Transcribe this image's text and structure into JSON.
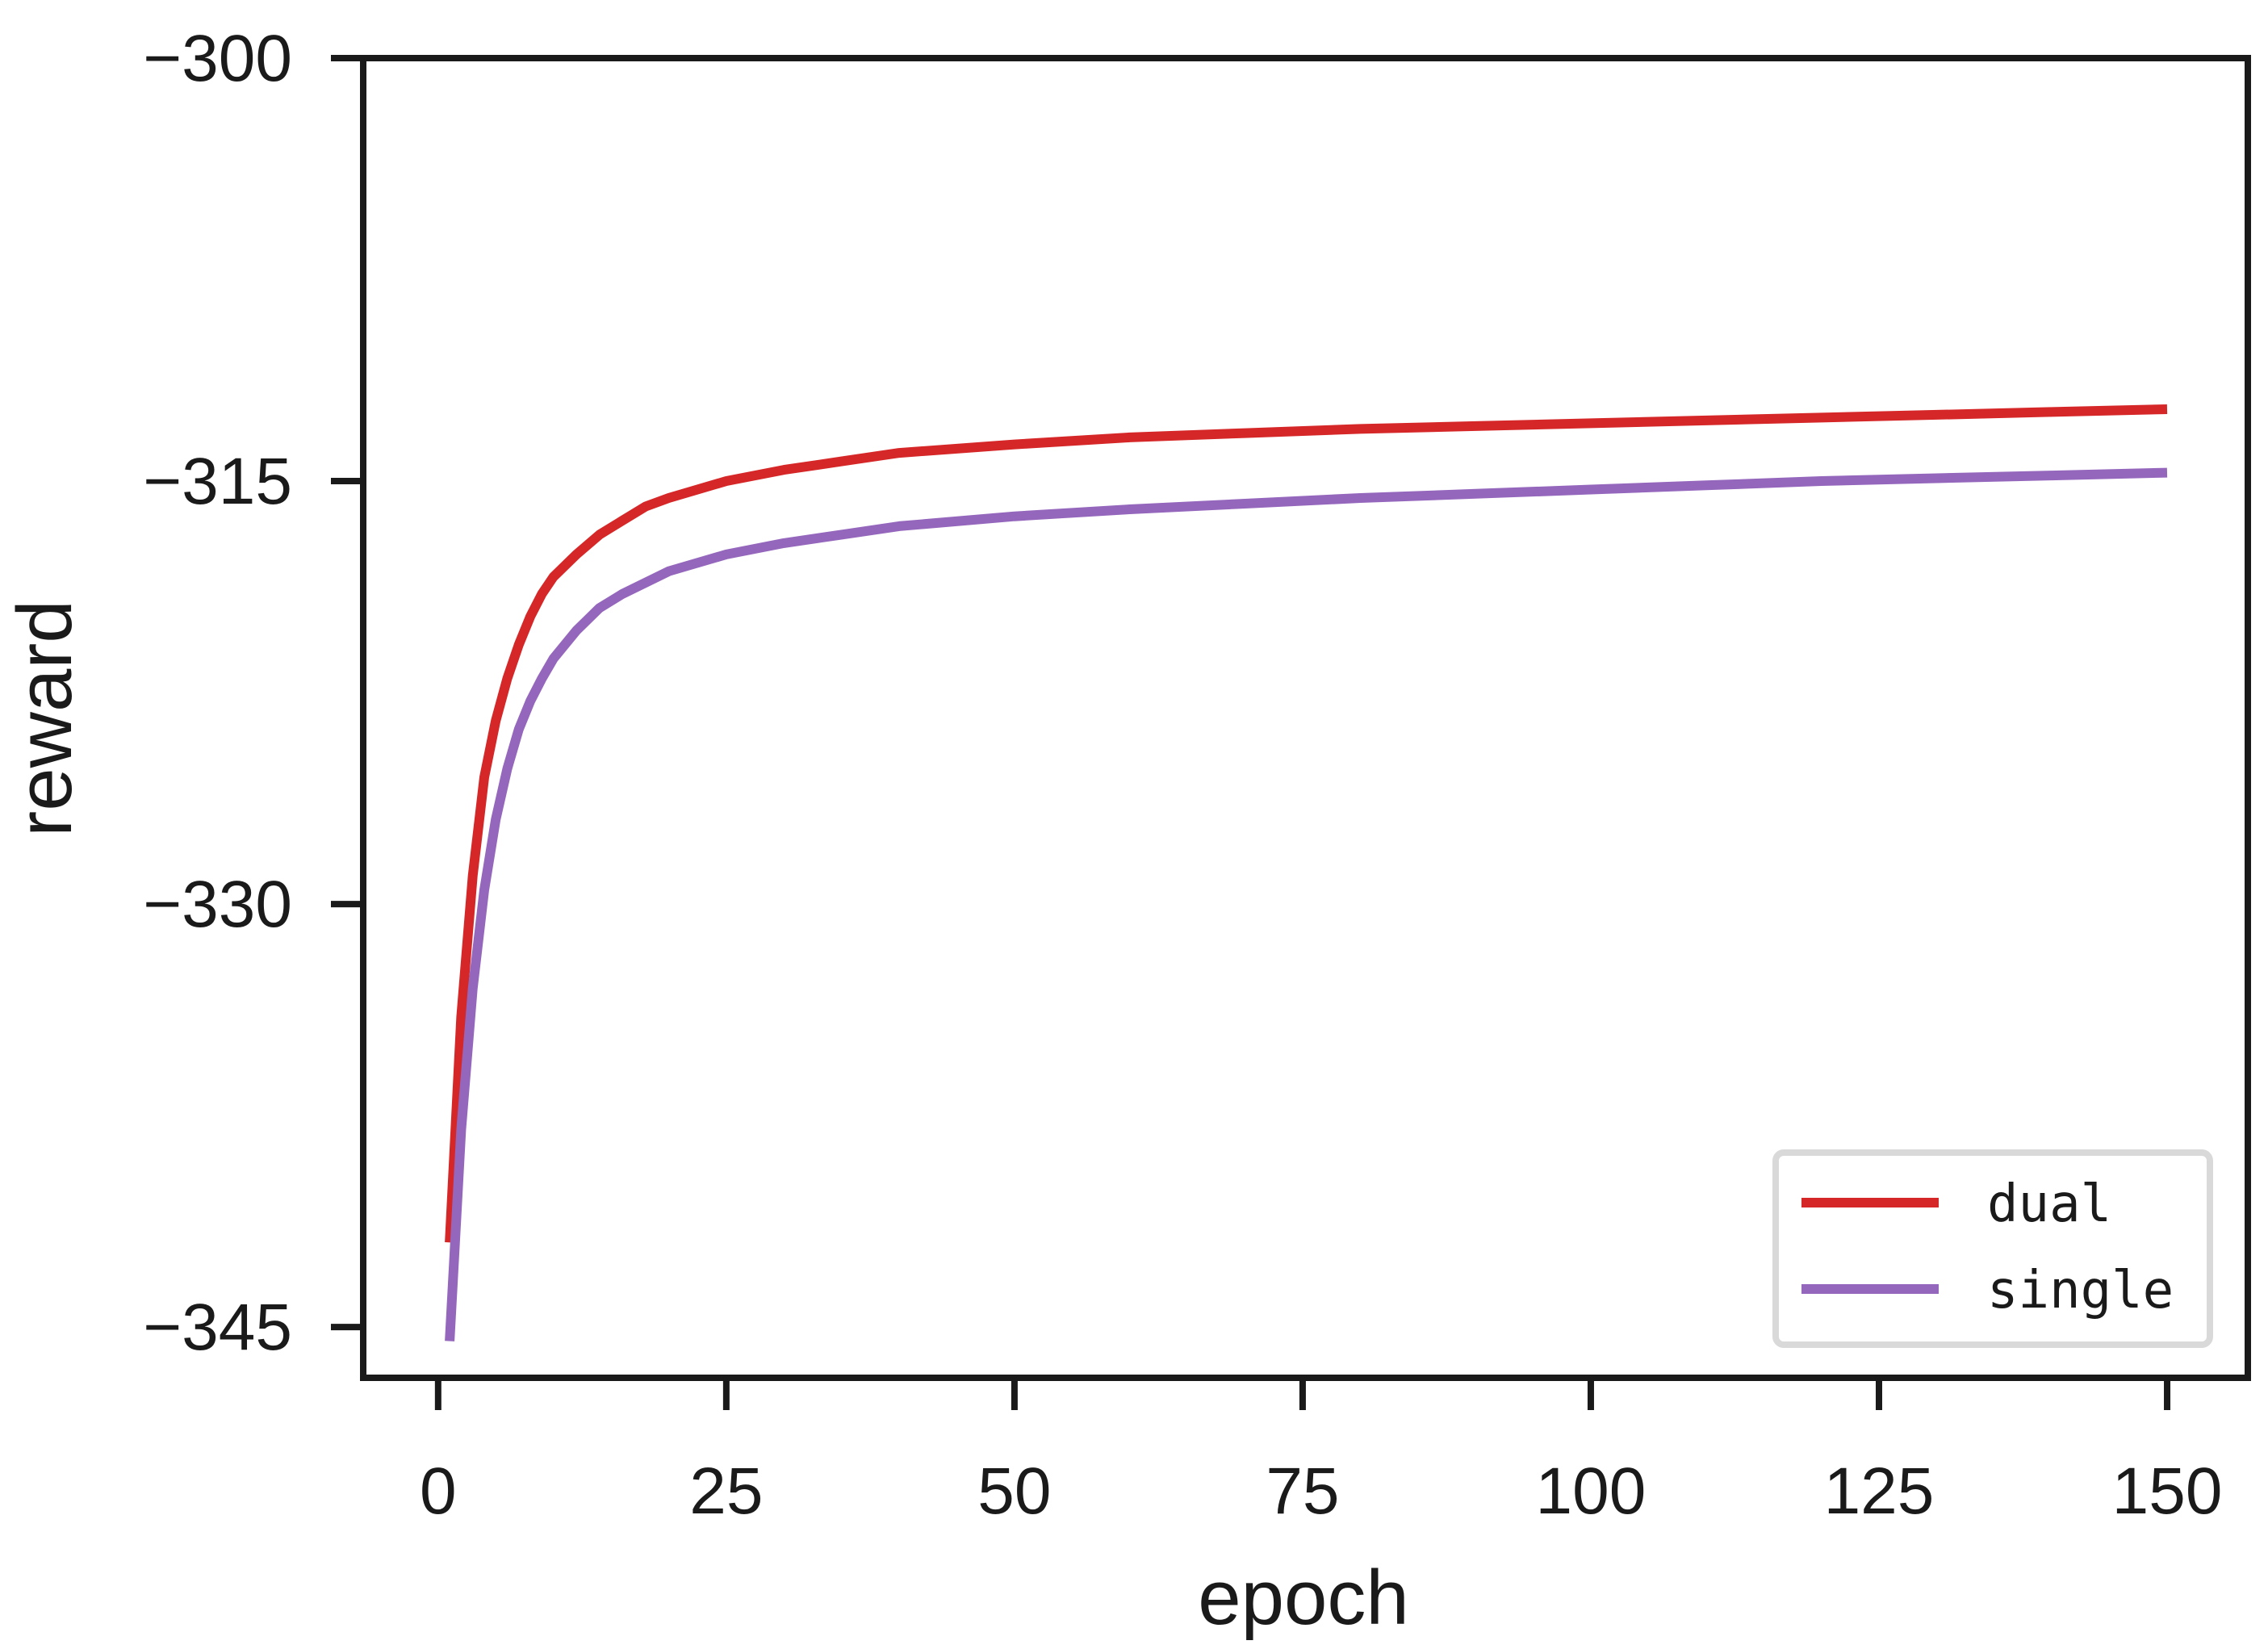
{
  "chart_data": {
    "type": "line",
    "title": "",
    "xlabel": "epoch",
    "ylabel": "reward",
    "xlim": [
      -6.5,
      157
    ],
    "ylim": [
      -346.8,
      -300
    ],
    "xticks": [
      0,
      25,
      50,
      75,
      100,
      125,
      150
    ],
    "yticks": [
      -300,
      -315,
      -330,
      -345
    ],
    "xtick_labels": [
      "0",
      "25",
      "50",
      "75",
      "100",
      "125",
      "150"
    ],
    "ytick_labels": [
      "−300",
      "−315",
      "−330",
      "−345"
    ],
    "grid": false,
    "legend": {
      "position": "lower-right"
    },
    "series": [
      {
        "name": "dual",
        "color": "#d62728",
        "x": [
          1,
          2,
          3,
          4,
          5,
          6,
          7,
          8,
          9,
          10,
          12,
          14,
          16,
          18,
          20,
          25,
          30,
          35,
          40,
          50,
          60,
          70,
          80,
          90,
          100,
          110,
          120,
          130,
          140,
          150
        ],
        "y": [
          -342.0,
          -334.0,
          -329.0,
          -325.5,
          -323.5,
          -322.0,
          -320.8,
          -319.8,
          -319.0,
          -318.4,
          -317.6,
          -316.9,
          -316.4,
          -315.9,
          -315.6,
          -315.0,
          -314.6,
          -314.3,
          -314.0,
          -313.7,
          -313.45,
          -313.3,
          -313.15,
          -313.05,
          -312.95,
          -312.85,
          -312.75,
          -312.65,
          -312.55,
          -312.45
        ]
      },
      {
        "name": "single",
        "color": "#9467bd",
        "x": [
          1,
          2,
          3,
          4,
          5,
          6,
          7,
          8,
          9,
          10,
          12,
          14,
          16,
          18,
          20,
          25,
          30,
          35,
          40,
          50,
          60,
          70,
          80,
          90,
          100,
          110,
          120,
          130,
          140,
          150
        ],
        "y": [
          -345.5,
          -338.0,
          -333.0,
          -329.5,
          -327.0,
          -325.2,
          -323.8,
          -322.8,
          -322.0,
          -321.3,
          -320.3,
          -319.5,
          -319.0,
          -318.6,
          -318.2,
          -317.6,
          -317.2,
          -316.9,
          -316.6,
          -316.25,
          -316.0,
          -315.8,
          -315.6,
          -315.45,
          -315.3,
          -315.15,
          -315.0,
          -314.9,
          -314.8,
          -314.7
        ]
      }
    ]
  }
}
